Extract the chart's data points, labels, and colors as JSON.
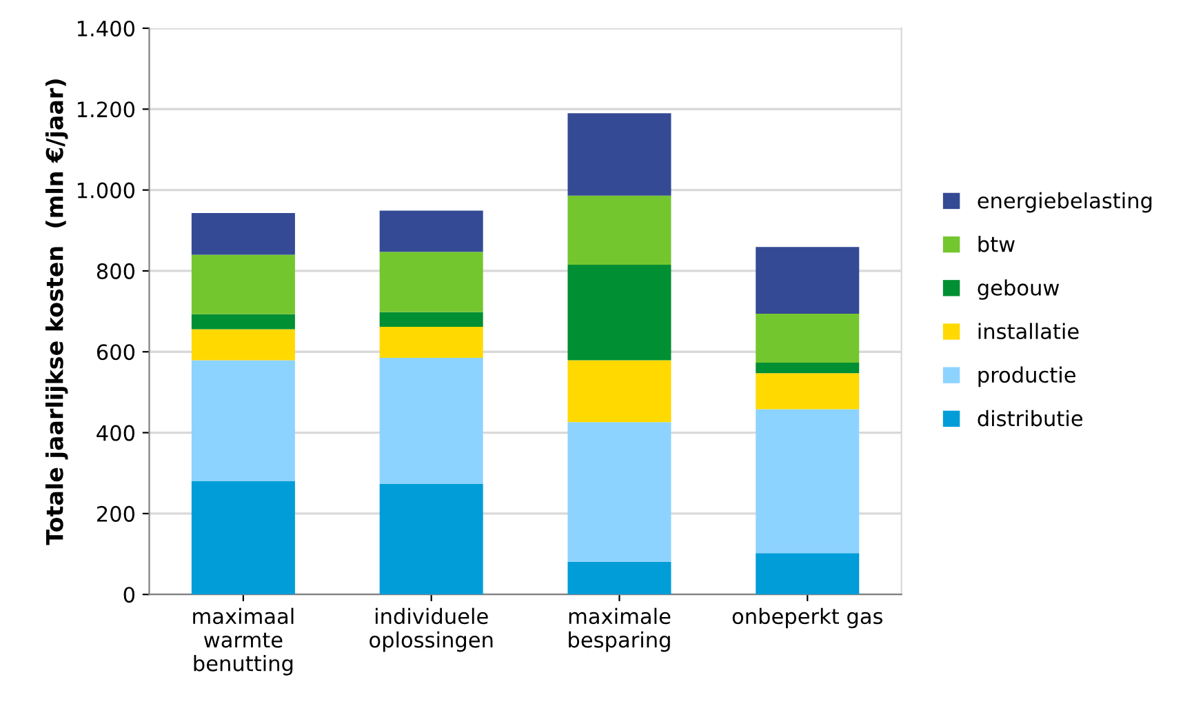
{
  "chart_data": {
    "type": "bar",
    "stacked": true,
    "ylabel": "Totale jaarlijkse kosten  (mln €/jaar)",
    "categories": [
      "maximaal\nwarmte\nbenutting",
      "individuele\noplossingen",
      "maximale\nbesparing",
      "onbeperkt gas"
    ],
    "series": [
      {
        "name": "distributie",
        "color": "#009dd9",
        "values": [
          280,
          273,
          81,
          102
        ]
      },
      {
        "name": "productie",
        "color": "#8dd3ff",
        "values": [
          299,
          312,
          345,
          356
        ]
      },
      {
        "name": "installatie",
        "color": "#ffd900",
        "values": [
          77,
          77,
          153,
          89
        ]
      },
      {
        "name": "gebouw",
        "color": "#008f33",
        "values": [
          37,
          36,
          236,
          26
        ]
      },
      {
        "name": "btw",
        "color": "#74c62f",
        "values": [
          147,
          149,
          171,
          121
        ]
      },
      {
        "name": "energiebelasting",
        "color": "#344a94",
        "values": [
          103,
          102,
          204,
          165
        ]
      }
    ],
    "ylim": [
      0,
      1400
    ],
    "yticks": [
      0,
      200,
      400,
      600,
      800,
      {
        "value": 1000,
        "label": "1.000"
      },
      {
        "value": 1200,
        "label": "1.200"
      },
      {
        "value": 1400,
        "label": "1.400"
      }
    ],
    "grid": "y",
    "legend": "right"
  }
}
